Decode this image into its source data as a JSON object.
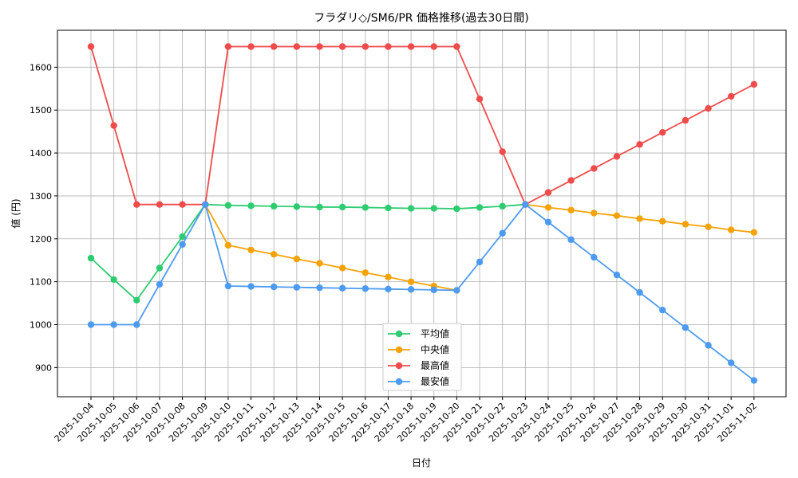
{
  "chart_data": {
    "type": "line",
    "title": "フラダリ◇/SM6/PR 価格推移(過去30日間)",
    "xlabel": "日付",
    "ylabel": "値 (円)",
    "ylim": [
      832,
      1686
    ],
    "yticks": [
      900,
      1000,
      1100,
      1200,
      1300,
      1400,
      1500,
      1600
    ],
    "grid": true,
    "legend_position": "bottom-center",
    "categories": [
      "2025-10-04",
      "2025-10-05",
      "2025-10-06",
      "2025-10-07",
      "2025-10-08",
      "2025-10-09",
      "2025-10-10",
      "2025-10-11",
      "2025-10-12",
      "2025-10-13",
      "2025-10-14",
      "2025-10-15",
      "2025-10-16",
      "2025-10-17",
      "2025-10-18",
      "2025-10-19",
      "2025-10-20",
      "2025-10-21",
      "2025-10-22",
      "2025-10-23",
      "2025-10-24",
      "2025-10-25",
      "2025-10-26",
      "2025-10-27",
      "2025-10-28",
      "2025-10-29",
      "2025-10-30",
      "2025-10-31",
      "2025-11-01",
      "2025-11-02"
    ],
    "series": [
      {
        "name": "平均値",
        "color": "#2ecc71",
        "values": [
          1155,
          1105,
          1057,
          1132,
          1205,
          1280,
          1278,
          1277,
          1276,
          1275,
          1274,
          1274,
          1273,
          1272,
          1271,
          1271,
          1270,
          1273,
          1276,
          1280,
          null,
          null,
          null,
          null,
          null,
          null,
          null,
          null,
          null,
          null
        ]
      },
      {
        "name": "中央値",
        "color": "#f5a30a",
        "values": [
          null,
          null,
          null,
          null,
          null,
          1280,
          1185,
          1174,
          1164,
          1153,
          1143,
          1132,
          1121,
          1111,
          1100,
          1090,
          1080,
          null,
          null,
          1280,
          1273,
          1267,
          1260,
          1254,
          1247,
          1241,
          1234,
          1228,
          1221,
          1215
        ]
      },
      {
        "name": "最高値",
        "color": "#ef4b4b",
        "values": [
          1648,
          1464,
          1280,
          1280,
          1280,
          1280,
          1648,
          1648,
          1648,
          1648,
          1648,
          1648,
          1648,
          1648,
          1648,
          1648,
          1648,
          1526,
          1403,
          1280,
          1308,
          1336,
          1364,
          1392,
          1420,
          1448,
          1476,
          1504,
          1532,
          1560
        ]
      },
      {
        "name": "最安値",
        "color": "#4d9bf0",
        "values": [
          1000,
          1000,
          1000,
          1094,
          1187,
          1280,
          1090,
          1089,
          1088,
          1087,
          1086,
          1085,
          1084,
          1083,
          1082,
          1081,
          1080,
          1146,
          1213,
          1280,
          1239,
          1198,
          1157,
          1116,
          1075,
          1034,
          993,
          952,
          911,
          870
        ]
      }
    ]
  }
}
